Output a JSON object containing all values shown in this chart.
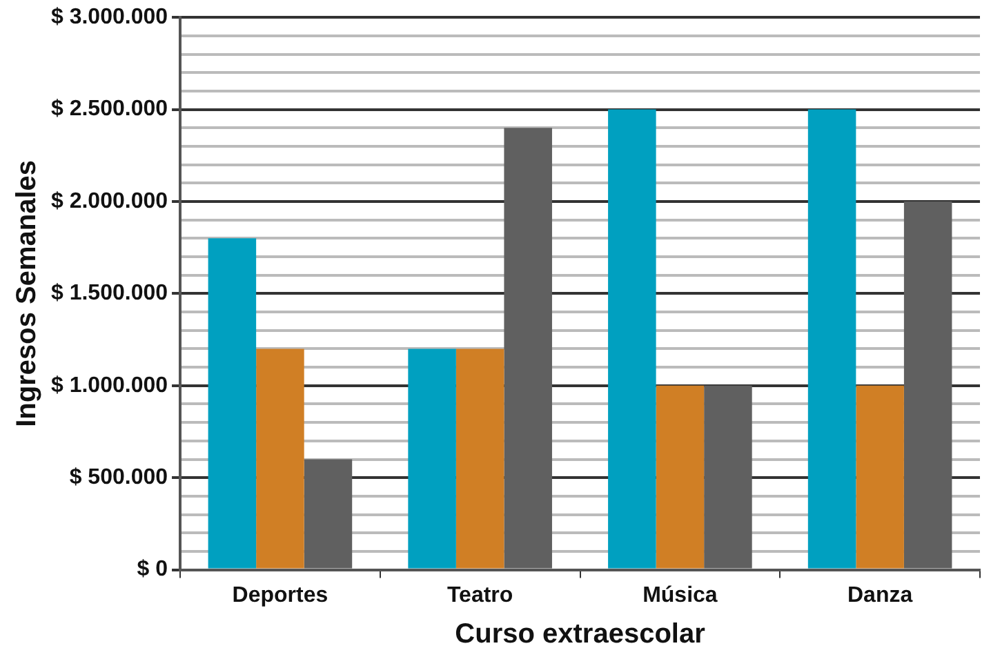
{
  "chart_data": {
    "type": "bar",
    "xlabel": "Curso extraescolar",
    "ylabel": "Ingresos Semanales",
    "categories": [
      "Deportes",
      "Teatro",
      "Música",
      "Danza"
    ],
    "series": [
      {
        "color": "#00a0c0",
        "values": [
          1800000,
          1200000,
          2500000,
          2500000
        ]
      },
      {
        "color": "#d07f25",
        "values": [
          1200000,
          1200000,
          1000000,
          1000000
        ]
      },
      {
        "color": "#606060",
        "values": [
          600000,
          2400000,
          1000000,
          2000000
        ]
      }
    ],
    "ylim": [
      0,
      3000000
    ],
    "yticks": [
      {
        "value": 0,
        "label": "$ 0"
      },
      {
        "value": 100000,
        "label": null
      },
      {
        "value": 200000,
        "label": null
      },
      {
        "value": 300000,
        "label": null
      },
      {
        "value": 400000,
        "label": null
      },
      {
        "value": 500000,
        "label": "$ 500.000"
      },
      {
        "value": 600000,
        "label": null
      },
      {
        "value": 700000,
        "label": null
      },
      {
        "value": 800000,
        "label": null
      },
      {
        "value": 900000,
        "label": null
      },
      {
        "value": 1000000,
        "label": "$ 1.000.000"
      },
      {
        "value": 1100000,
        "label": null
      },
      {
        "value": 1200000,
        "label": null
      },
      {
        "value": 1300000,
        "label": null
      },
      {
        "value": 1400000,
        "label": null
      },
      {
        "value": 1500000,
        "label": "$ 1.500.000"
      },
      {
        "value": 1600000,
        "label": null
      },
      {
        "value": 1700000,
        "label": null
      },
      {
        "value": 1800000,
        "label": null
      },
      {
        "value": 1900000,
        "label": null
      },
      {
        "value": 2000000,
        "label": "$ 2.000.000"
      },
      {
        "value": 2100000,
        "label": null
      },
      {
        "value": 2200000,
        "label": null
      },
      {
        "value": 2300000,
        "label": null
      },
      {
        "value": 2400000,
        "label": null
      },
      {
        "value": 2500000,
        "label": "$ 2.500.000"
      },
      {
        "value": 2600000,
        "label": null
      },
      {
        "value": 2700000,
        "label": null
      },
      {
        "value": 2800000,
        "label": null
      },
      {
        "value": 2900000,
        "label": null
      },
      {
        "value": 3000000,
        "label": "$ 3.000.000"
      }
    ],
    "grid": true
  }
}
